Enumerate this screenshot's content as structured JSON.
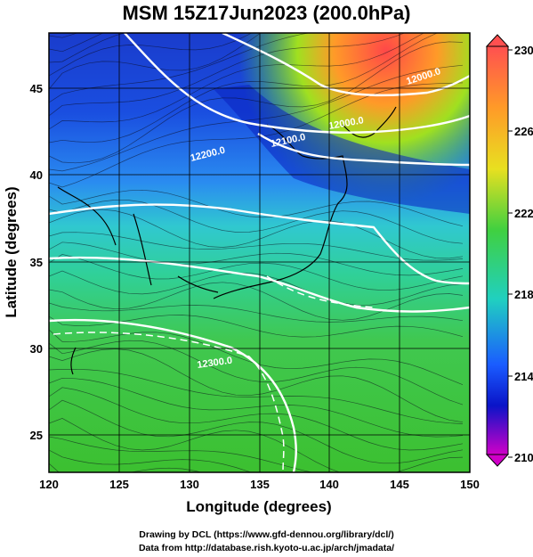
{
  "title": "MSM 15Z17Jun2023 (200.0hPa)",
  "x_axis": {
    "title": "Longitude (degrees)",
    "ticks": [
      "120",
      "125",
      "130",
      "135",
      "140",
      "145",
      "150"
    ]
  },
  "y_axis": {
    "title": "Latitude  (degrees)",
    "ticks": [
      "25",
      "30",
      "35",
      "40",
      "45"
    ]
  },
  "colorbar": {
    "ticks": [
      "230",
      "226",
      "222",
      "218",
      "214",
      "210"
    ],
    "colors": [
      "#ff5050",
      "#ff9a28",
      "#e8e020",
      "#40d040",
      "#20d0c0",
      "#1a5cff",
      "#0a14c8",
      "#d000c8"
    ]
  },
  "contour_labels": [
    "12200.0",
    "12100.0",
    "12000.0",
    "12000.0",
    "12300.0"
  ],
  "map_data": {
    "lon_range": [
      120,
      150
    ],
    "lat_range": [
      22.5,
      48
    ],
    "field": "temperature (K) shading, geopotential height contours, wind streamlines",
    "colorbar_range": [
      210,
      230
    ]
  },
  "footer": {
    "line1": "Drawing by DCL (https://www.gfd-dennou.org/library/dcl/)",
    "line2": "Data from http://database.rish.kyoto-u.ac.jp/arch/jmadata/"
  }
}
